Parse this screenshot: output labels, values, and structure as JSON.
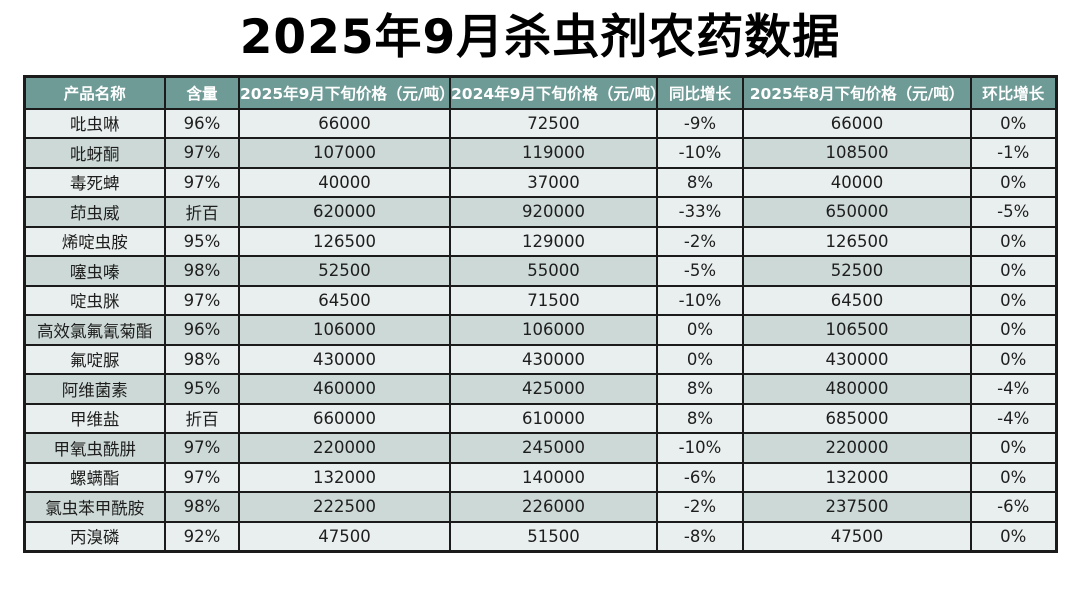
{
  "page_title": "2025年9月杀虫剂农药数据",
  "colors": {
    "header_bg": "#6f9b97",
    "header_text": "#ffffff",
    "row_light": "#e9efee",
    "row_dark": "#ccd9d6",
    "border": "#1b1b1b",
    "title_text": "#000000"
  },
  "chart_data": {
    "type": "table",
    "title": "2025年9月杀虫剂农药数据",
    "columns": [
      "产品名称",
      "含量",
      "2025年9月下旬价格（元/吨）",
      "2024年9月下旬价格（元/吨）",
      "同比增长",
      "2025年8月下旬价格（元/吨）",
      "环比增长"
    ],
    "column_keys": [
      "product",
      "content",
      "price-2025-09",
      "price-2024-09",
      "yoy-growth",
      "price-2025-08",
      "mom-growth"
    ],
    "rows": [
      [
        "吡虫啉",
        "96%",
        "66000",
        "72500",
        "-9%",
        "66000",
        "0%"
      ],
      [
        "吡蚜酮",
        "97%",
        "107000",
        "119000",
        "-10%",
        "108500",
        "-1%"
      ],
      [
        "毒死蜱",
        "97%",
        "40000",
        "37000",
        "8%",
        "40000",
        "0%"
      ],
      [
        "茚虫威",
        "折百",
        "620000",
        "920000",
        "-33%",
        "650000",
        "-5%"
      ],
      [
        "烯啶虫胺",
        "95%",
        "126500",
        "129000",
        "-2%",
        "126500",
        "0%"
      ],
      [
        "噻虫嗪",
        "98%",
        "52500",
        "55000",
        "-5%",
        "52500",
        "0%"
      ],
      [
        "啶虫脒",
        "97%",
        "64500",
        "71500",
        "-10%",
        "64500",
        "0%"
      ],
      [
        "高效氯氟氰菊酯",
        "96%",
        "106000",
        "106000",
        "0%",
        "106500",
        "0%"
      ],
      [
        "氟啶脲",
        "98%",
        "430000",
        "430000",
        "0%",
        "430000",
        "0%"
      ],
      [
        "阿维菌素",
        "95%",
        "460000",
        "425000",
        "8%",
        "480000",
        "-4%"
      ],
      [
        "甲维盐",
        "折百",
        "660000",
        "610000",
        "8%",
        "685000",
        "-4%"
      ],
      [
        "甲氧虫酰肼",
        "97%",
        "220000",
        "245000",
        "-10%",
        "220000",
        "0%"
      ],
      [
        "螺螨酯",
        "97%",
        "132000",
        "140000",
        "-6%",
        "132000",
        "0%"
      ],
      [
        "氯虫苯甲酰胺",
        "98%",
        "222500",
        "226000",
        "-2%",
        "237500",
        "-6%"
      ],
      [
        "丙溴磷",
        "92%",
        "47500",
        "51500",
        "-8%",
        "47500",
        "0%"
      ]
    ]
  }
}
